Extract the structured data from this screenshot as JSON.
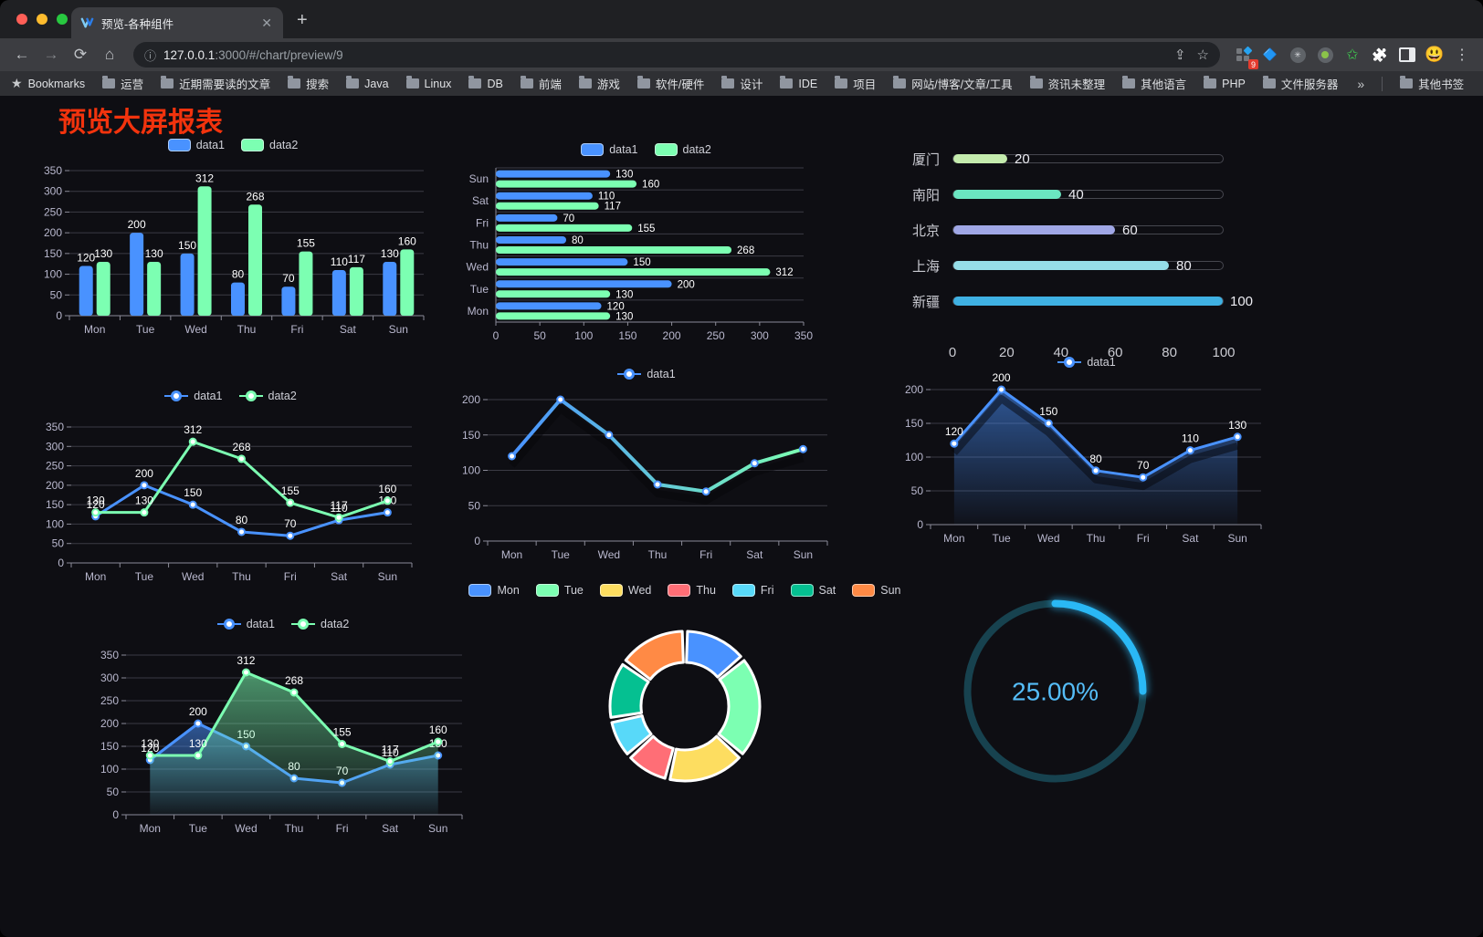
{
  "browser": {
    "tab_title": "预览-各种组件",
    "close_glyph": "✕",
    "new_tab_glyph": "+",
    "back_glyph": "←",
    "forward_glyph": "→",
    "reload_glyph": "⟳",
    "home_glyph": "⌂",
    "info_glyph": "ⓘ",
    "share_glyph": "⇪",
    "star_glyph": "☆",
    "kebab_glyph": "⋮",
    "url_host": "127.0.0.1",
    "url_rest": ":3000/#/chart/preview/9",
    "extension_badge": "9",
    "avatar_emoji": "😃",
    "puzzle_emoji": "🧩",
    "gem_emoji": "🔷",
    "asterisk_glyph": "✳",
    "green_star_glyph": "✩",
    "bookmarks_label": "Bookmarks",
    "bookmarks": [
      "运营",
      "近期需要读的文章",
      "搜索",
      "Java",
      "Linux",
      "DB",
      "前端",
      "游戏",
      "软件/硬件",
      "设计",
      "IDE",
      "项目",
      "网站/博客/文章/工具",
      "资讯未整理",
      "其他语言",
      "PHP",
      "文件服务器"
    ],
    "overflow_glyph": "»",
    "other_bookmarks": "其他书签"
  },
  "page": {
    "title": "预览大屏报表",
    "title_color": "#f2330d",
    "background": "#0e0e13"
  },
  "palette": {
    "data1_blue": "#4992ff",
    "data2_green": "#7cffb2",
    "yellow": "#fddd60",
    "red": "#ff6e76",
    "light_blue": "#58d9f9",
    "teal": "#05c091",
    "orange": "#ff8a45",
    "axis_text": "#b9b8ce",
    "grid_line": "#3b3b45"
  },
  "chart_data": [
    {
      "id": "bar-vertical",
      "type": "bar",
      "categories": [
        "Mon",
        "Tue",
        "Wed",
        "Thu",
        "Fri",
        "Sat",
        "Sun"
      ],
      "series": [
        {
          "name": "data1",
          "color": "#4992ff",
          "values": [
            120,
            200,
            150,
            80,
            70,
            110,
            130
          ]
        },
        {
          "name": "data2",
          "color": "#7cffb2",
          "values": [
            130,
            130,
            312,
            268,
            155,
            117,
            160
          ]
        }
      ],
      "ylim": [
        0,
        350
      ],
      "yticks": [
        0,
        50,
        100,
        150,
        200,
        250,
        300,
        350
      ],
      "legend_position": "top",
      "grid": true
    },
    {
      "id": "bar-horizontal",
      "type": "bar",
      "orientation": "horizontal",
      "categories": [
        "Mon",
        "Tue",
        "Wed",
        "Thu",
        "Fri",
        "Sat",
        "Sun"
      ],
      "series": [
        {
          "name": "data1",
          "color": "#4992ff",
          "values": [
            120,
            200,
            150,
            80,
            70,
            110,
            130
          ]
        },
        {
          "name": "data2",
          "color": "#7cffb2",
          "values": [
            130,
            130,
            312,
            268,
            155,
            117,
            160
          ]
        }
      ],
      "xlim": [
        0,
        350
      ],
      "xticks": [
        0,
        50,
        100,
        150,
        200,
        250,
        300,
        350
      ],
      "legend_position": "top"
    },
    {
      "id": "progress",
      "type": "bar",
      "subtype": "progress-list",
      "items": [
        {
          "label": "厦门",
          "value": 20,
          "color": "#c4ebad"
        },
        {
          "label": "南阳",
          "value": 40,
          "color": "#6be6c1"
        },
        {
          "label": "北京",
          "value": 60,
          "color": "#a0a7e6"
        },
        {
          "label": "上海",
          "value": 80,
          "color": "#96dee8"
        },
        {
          "label": "新疆",
          "value": 100,
          "color": "#3fb1e3"
        }
      ],
      "xlim": [
        0,
        100
      ],
      "xticks": [
        0,
        20,
        40,
        60,
        80,
        100
      ]
    },
    {
      "id": "line-two",
      "type": "line",
      "categories": [
        "Mon",
        "Tue",
        "Wed",
        "Thu",
        "Fri",
        "Sat",
        "Sun"
      ],
      "series": [
        {
          "name": "data1",
          "color": "#4992ff",
          "values": [
            120,
            200,
            150,
            80,
            70,
            110,
            130
          ],
          "labels": true
        },
        {
          "name": "data2",
          "color": "#7cffb2",
          "values": [
            130,
            130,
            312,
            268,
            155,
            117,
            160
          ],
          "labels": true
        }
      ],
      "ylim": [
        0,
        350
      ],
      "yticks": [
        0,
        50,
        100,
        150,
        200,
        250,
        300,
        350
      ]
    },
    {
      "id": "line-gradient",
      "type": "line",
      "categories": [
        "Mon",
        "Tue",
        "Wed",
        "Thu",
        "Fri",
        "Sat",
        "Sun"
      ],
      "series": [
        {
          "name": "data1",
          "color": "#4992ff",
          "gradient_stroke": [
            "#4992ff",
            "#7cffb2"
          ],
          "values": [
            120,
            200,
            150,
            80,
            70,
            110,
            130
          ],
          "labels": false,
          "shadow": true
        }
      ],
      "ylim": [
        0,
        200
      ],
      "yticks": [
        0,
        50,
        100,
        150,
        200
      ]
    },
    {
      "id": "line-area",
      "type": "line",
      "categories": [
        "Mon",
        "Tue",
        "Wed",
        "Thu",
        "Fri",
        "Sat",
        "Sun"
      ],
      "series": [
        {
          "name": "data1",
          "color": "#4992ff",
          "values": [
            120,
            200,
            150,
            80,
            70,
            110,
            130
          ],
          "labels": true,
          "area": true,
          "shadow": true
        }
      ],
      "ylim": [
        0,
        200
      ],
      "yticks": [
        0,
        50,
        100,
        150,
        200
      ]
    },
    {
      "id": "line-two-area",
      "type": "line",
      "categories": [
        "Mon",
        "Tue",
        "Wed",
        "Thu",
        "Fri",
        "Sat",
        "Sun"
      ],
      "series": [
        {
          "name": "data1",
          "color": "#4992ff",
          "values": [
            120,
            200,
            150,
            80,
            70,
            110,
            130
          ],
          "labels": true,
          "area": true
        },
        {
          "name": "data2",
          "color": "#7cffb2",
          "values": [
            130,
            130,
            312,
            268,
            155,
            117,
            160
          ],
          "labels": true,
          "area": true
        }
      ],
      "ylim": [
        0,
        350
      ],
      "yticks": [
        0,
        50,
        100,
        150,
        200,
        250,
        300,
        350
      ]
    },
    {
      "id": "donut",
      "type": "pie",
      "categories": [
        "Mon",
        "Tue",
        "Wed",
        "Thu",
        "Fri",
        "Sat",
        "Sun"
      ],
      "values": [
        120,
        200,
        150,
        80,
        70,
        110,
        130
      ],
      "colors": [
        "#4992ff",
        "#7cffb2",
        "#fddd60",
        "#ff6e76",
        "#58d9f9",
        "#05c091",
        "#ff8a45"
      ],
      "legend_position": "top"
    },
    {
      "id": "gauge",
      "type": "gauge",
      "value": 25,
      "display": "25.00%",
      "color": "#2ab8f5",
      "track_color": "#17424f",
      "text_color": "#55bdf8"
    }
  ]
}
